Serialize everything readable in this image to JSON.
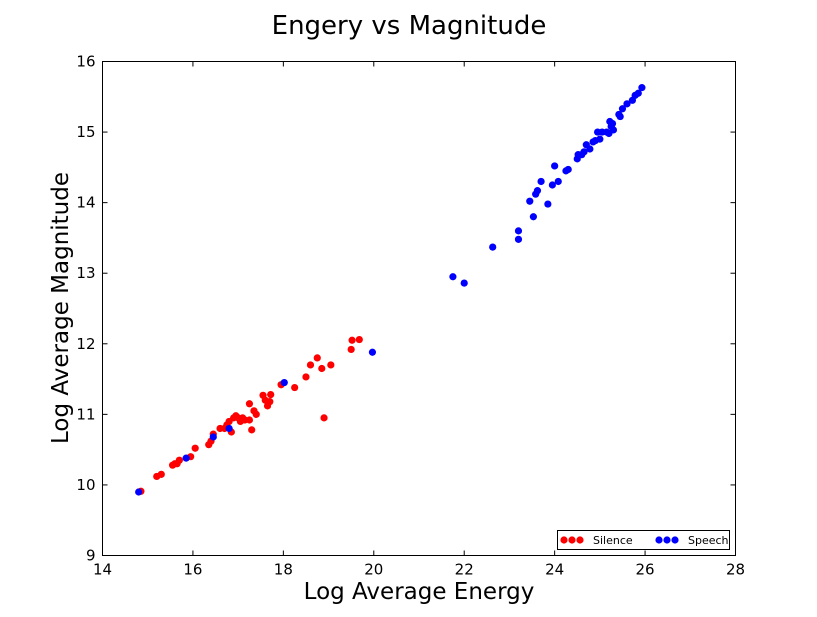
{
  "chart_data": {
    "type": "scatter",
    "title": "Engery vs Magnitude",
    "xlabel": "Log Average Energy",
    "ylabel": "Log Average Magnitude",
    "xlim": [
      14,
      28
    ],
    "ylim": [
      9,
      16
    ],
    "xticks": [
      "14",
      "16",
      "18",
      "20",
      "22",
      "24",
      "26",
      "28"
    ],
    "yticks": [
      "9",
      "10",
      "11",
      "12",
      "13",
      "14",
      "15",
      "16"
    ],
    "grid": false,
    "legend_position": "lower-right",
    "series": [
      {
        "name": "Silence",
        "color": "#ff0000",
        "points": [
          [
            14.85,
            9.91
          ],
          [
            15.2,
            10.12
          ],
          [
            15.3,
            10.15
          ],
          [
            15.55,
            10.28
          ],
          [
            15.6,
            10.3
          ],
          [
            15.65,
            10.3
          ],
          [
            15.7,
            10.35
          ],
          [
            15.95,
            10.4
          ],
          [
            16.05,
            10.52
          ],
          [
            16.35,
            10.57
          ],
          [
            16.4,
            10.62
          ],
          [
            16.45,
            10.72
          ],
          [
            16.6,
            10.8
          ],
          [
            16.7,
            10.8
          ],
          [
            16.75,
            10.85
          ],
          [
            16.8,
            10.9
          ],
          [
            16.85,
            10.75
          ],
          [
            16.9,
            10.95
          ],
          [
            16.95,
            10.98
          ],
          [
            17.0,
            10.95
          ],
          [
            17.05,
            10.9
          ],
          [
            17.1,
            10.95
          ],
          [
            17.15,
            10.92
          ],
          [
            17.25,
            10.92
          ],
          [
            17.25,
            11.15
          ],
          [
            17.3,
            10.78
          ],
          [
            17.35,
            11.05
          ],
          [
            17.4,
            11.0
          ],
          [
            17.55,
            11.27
          ],
          [
            17.6,
            11.2
          ],
          [
            17.65,
            11.12
          ],
          [
            17.7,
            11.18
          ],
          [
            17.72,
            11.28
          ],
          [
            17.95,
            11.42
          ],
          [
            18.25,
            11.38
          ],
          [
            18.5,
            11.53
          ],
          [
            18.6,
            11.7
          ],
          [
            18.75,
            11.8
          ],
          [
            18.85,
            11.65
          ],
          [
            18.9,
            10.95
          ],
          [
            19.05,
            11.7
          ],
          [
            19.5,
            11.92
          ],
          [
            19.52,
            12.05
          ],
          [
            19.68,
            12.06
          ]
        ]
      },
      {
        "name": "Speech",
        "color": "#0000ff",
        "points": [
          [
            14.8,
            9.9
          ],
          [
            15.85,
            10.38
          ],
          [
            16.45,
            10.68
          ],
          [
            16.8,
            10.8
          ],
          [
            18.02,
            11.45
          ],
          [
            19.97,
            11.88
          ],
          [
            21.75,
            12.95
          ],
          [
            22.0,
            12.86
          ],
          [
            22.63,
            13.37
          ],
          [
            23.2,
            13.48
          ],
          [
            23.2,
            13.6
          ],
          [
            23.45,
            14.02
          ],
          [
            23.53,
            13.8
          ],
          [
            23.58,
            14.12
          ],
          [
            23.62,
            14.17
          ],
          [
            23.7,
            14.3
          ],
          [
            23.85,
            13.98
          ],
          [
            23.95,
            14.25
          ],
          [
            24.0,
            14.52
          ],
          [
            24.08,
            14.3
          ],
          [
            24.25,
            14.45
          ],
          [
            24.3,
            14.47
          ],
          [
            24.5,
            14.62
          ],
          [
            24.52,
            14.68
          ],
          [
            24.6,
            14.68
          ],
          [
            24.65,
            14.72
          ],
          [
            24.7,
            14.82
          ],
          [
            24.78,
            14.76
          ],
          [
            24.85,
            14.86
          ],
          [
            24.9,
            14.88
          ],
          [
            24.95,
            15.0
          ],
          [
            25.0,
            14.9
          ],
          [
            25.05,
            15.0
          ],
          [
            25.15,
            15.0
          ],
          [
            25.2,
            14.98
          ],
          [
            25.22,
            15.15
          ],
          [
            25.25,
            15.08
          ],
          [
            25.28,
            15.12
          ],
          [
            25.3,
            15.03
          ],
          [
            25.42,
            15.25
          ],
          [
            25.45,
            15.22
          ],
          [
            25.5,
            15.33
          ],
          [
            25.6,
            15.4
          ],
          [
            25.72,
            15.45
          ],
          [
            25.78,
            15.52
          ],
          [
            25.85,
            15.55
          ],
          [
            25.93,
            15.63
          ]
        ]
      }
    ]
  }
}
